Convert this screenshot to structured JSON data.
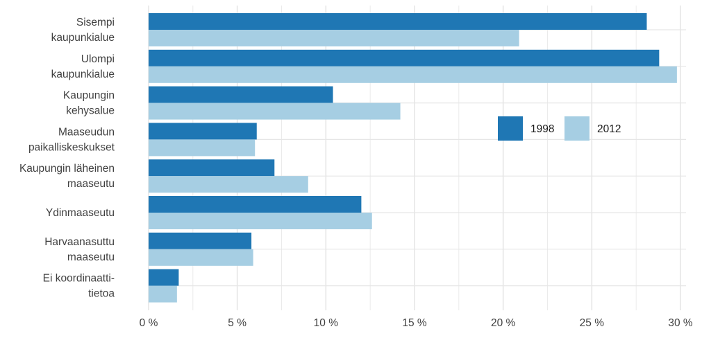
{
  "colors": {
    "series_1998": "#1f77b4",
    "series_2012": "#a6cee3",
    "grid": "#e6e6e6",
    "text": "#404040"
  },
  "chart_data": {
    "type": "bar",
    "orientation": "horizontal",
    "categories": [
      [
        "Sisempi",
        "kaupunkialue"
      ],
      [
        "Ulompi",
        "kaupunkialue"
      ],
      [
        "Kaupungin",
        "kehysalue"
      ],
      [
        "Maaseudun",
        "paikalliskeskukset"
      ],
      [
        "Kaupungin läheinen",
        "maaseutu"
      ],
      [
        "Ydinmaaseutu"
      ],
      [
        "Harvaanasuttu",
        "maaseutu"
      ],
      [
        "Ei koordinaatti-",
        "tietoa"
      ]
    ],
    "series": [
      {
        "name": "1998",
        "values": [
          28.1,
          28.8,
          10.4,
          6.1,
          7.1,
          12.0,
          5.8,
          1.7
        ]
      },
      {
        "name": "2012",
        "values": [
          20.9,
          29.8,
          14.2,
          6.0,
          9.0,
          12.6,
          5.9,
          1.6
        ]
      }
    ],
    "xticks": [
      "0 %",
      "5 %",
      "10 %",
      "15 %",
      "20 %",
      "25 %",
      "30 %"
    ],
    "xtick_values": [
      0,
      5,
      10,
      15,
      20,
      25,
      30
    ],
    "xlim": [
      0,
      30
    ],
    "grid": true,
    "legend_position": "right-middle"
  }
}
